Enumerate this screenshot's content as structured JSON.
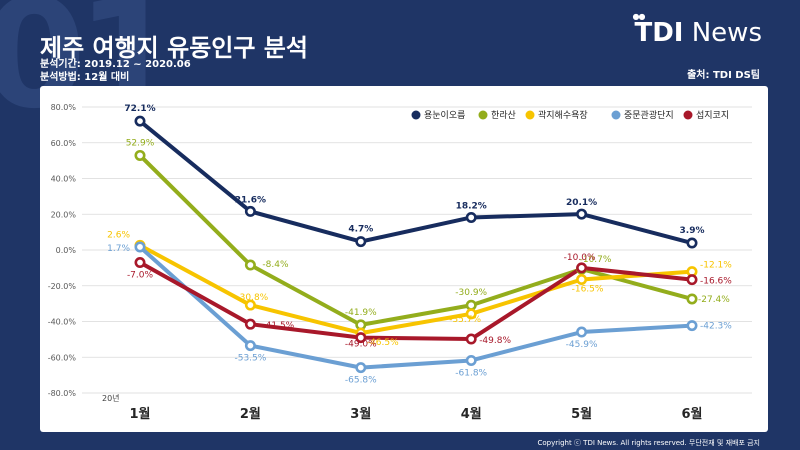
{
  "header": {
    "watermark": "01",
    "title": "제주 여행지 유동인구 분석",
    "period": "분석기간: 2019.12 ~ 2020.06",
    "method": "분석방법: 12월 대비",
    "source": "출처: TDI DS팀",
    "brand_bold": "TDI",
    "brand_light": "News",
    "copyright": "Copyright ⓒ TDI News. All rights reserved. 무단전재 및 재배포 금지"
  },
  "chart_data": {
    "type": "line",
    "title": "",
    "xlabel": "",
    "ylabel": "",
    "year_label": "20년",
    "categories": [
      "1월",
      "2월",
      "3월",
      "4월",
      "5월",
      "6월"
    ],
    "ylim": [
      -80,
      80
    ],
    "yticks": [
      80,
      60,
      40,
      20,
      0,
      -20,
      -40,
      -60,
      -80
    ],
    "ytick_labels": [
      "80.0%",
      "60.0%",
      "40.0%",
      "20.0%",
      "0.0%",
      "-20.0%",
      "-40.0%",
      "-60.0%",
      "-80.0%"
    ],
    "grid": true,
    "legend_position": "top-right",
    "series": [
      {
        "name": "용눈이오름",
        "color": "#172c5e",
        "values": [
          72.1,
          21.6,
          4.7,
          18.2,
          20.1,
          3.9
        ],
        "labels": [
          "72.1%",
          "21.6%",
          "4.7%",
          "18.2%",
          "20.1%",
          "3.9%"
        ]
      },
      {
        "name": "한라산",
        "color": "#93ad1c",
        "values": [
          52.9,
          -8.4,
          -41.9,
          -30.9,
          -10.7,
          -27.4
        ],
        "labels": [
          "52.9%",
          "-8.4%",
          "-41.9%",
          "-30.9%",
          "-10.7%",
          "-27.4%"
        ]
      },
      {
        "name": "곽지해수욕장",
        "color": "#f7c400",
        "values": [
          2.6,
          -30.8,
          -46.5,
          -35.7,
          -16.5,
          -12.1
        ],
        "labels": [
          "2.6%",
          "-30.8%",
          "-46.5%",
          "-35.7%",
          "-16.5%",
          "-12.1%"
        ]
      },
      {
        "name": "중문관광단지",
        "color": "#6b9fd3",
        "values": [
          1.7,
          -53.5,
          -65.8,
          -61.8,
          -45.9,
          -42.3
        ],
        "labels": [
          "1.7%",
          "-53.5%",
          "-65.8%",
          "-61.8%",
          "-45.9%",
          "-42.3%"
        ]
      },
      {
        "name": "섭지코지",
        "color": "#a8182a",
        "values": [
          -7.0,
          -41.5,
          -49.0,
          -49.8,
          -10.0,
          -16.6
        ],
        "labels": [
          "-7.0%",
          "-41.5%",
          "-49.0%",
          "-49.8%",
          "-10.0%",
          "-16.6%"
        ]
      }
    ]
  }
}
